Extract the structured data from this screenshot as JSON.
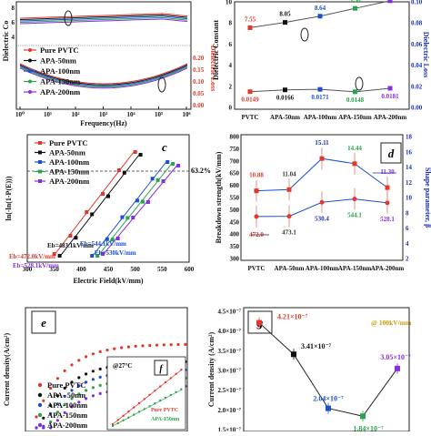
{
  "chart_data": [
    {
      "panel": "a",
      "type": "line",
      "ylabel_left": "Dielectric Co",
      "ylabel_right": "Dielectric Loss",
      "xlabel": "Frequency(Hz)",
      "x_ticks": [
        "10⁰",
        "10¹",
        "10²",
        "10³",
        "10⁴",
        "10⁵",
        "10⁶"
      ],
      "y_right_ticks": [
        "0.00",
        "0.05",
        "0.10",
        "0.15",
        "0.20"
      ],
      "y_left_ticks": [
        "8",
        "6",
        "4"
      ],
      "legend": [
        "Pure PVTC",
        "APA-50nm",
        "APA-100nm",
        "APA-150nm",
        "APA-200nm"
      ]
    },
    {
      "panel": "b",
      "type": "line",
      "ylabel_left": "Dielectric Constant",
      "ylabel_right": "Dielectric Loss",
      "categories": [
        "PVTC",
        "APA-50nm",
        "APA-100nm",
        "APA-150nm",
        "APA-200nm"
      ],
      "ylim": [
        0,
        10
      ],
      "y_ticks": [
        "0",
        "2",
        "4",
        "6",
        "8",
        "10"
      ],
      "y_right_ticks": [
        "0.00",
        "0.02",
        "0.04",
        "0.06",
        "0.08",
        "0.10"
      ],
      "series": [
        {
          "values": [
            7.55,
            8.05,
            8.64,
            9.38,
            10.1
          ],
          "labels": [
            "7.55",
            "8.05",
            "8.64",
            "9.38",
            ""
          ],
          "colors": [
            "#e0392b",
            "#111111",
            "#1a4fd0",
            "#2aa34a",
            "#8a2be2"
          ]
        },
        {
          "values": [
            0.0149,
            0.0166,
            0.0171,
            0.0148,
            0.0181
          ],
          "labels": [
            "0.0149",
            "0.0166",
            "0.0171",
            "0.0148",
            "0.0181"
          ],
          "colors": [
            "#e0392b",
            "#111111",
            "#1a4fd0",
            "#2aa34a",
            "#8a2be2"
          ]
        }
      ]
    },
    {
      "panel": "c",
      "type": "scatter",
      "ylabel": "ln(-ln(1-P(E)))",
      "xlabel": "Electric Field(kV/mm)",
      "x_ticks": [
        "300",
        "350",
        "400",
        "450",
        "500",
        "550",
        "600"
      ],
      "xlim": [
        300,
        600
      ],
      "annotation": "63.2%",
      "legend": [
        "Pure PVTC",
        "APA-50nm",
        "APA-100nm",
        "APA-150nm",
        "APA-200nm"
      ],
      "eb_labels": [
        "Eb=483.1kV/mm",
        "Eb=472.0kV/mm",
        "Eb=528.1kV/mm",
        "Eb=530kV/mm",
        "Eb=544.1kV/mm"
      ]
    },
    {
      "panel": "d",
      "type": "line",
      "ylabel_left": "Breakdown strength(kV/mm)",
      "ylabel_right": "Shape parameter, β",
      "categories": [
        "PVTC",
        "APA-50nm",
        "APA-100nm",
        "APA-150nm",
        "APA-200nm"
      ],
      "ylim": [
        300,
        800
      ],
      "y_ticks": [
        "300",
        "350",
        "400",
        "450",
        "500",
        "550",
        "600",
        "650",
        "700",
        "750",
        "800"
      ],
      "y_right_ticks": [
        "2",
        "4",
        "6",
        "8",
        "10",
        "12",
        "14",
        "16",
        "18"
      ],
      "series": [
        {
          "values": [
            10.88,
            11.04,
            15.11,
            14.44,
            11.3
          ],
          "labels": [
            "10.88",
            "11.04",
            "15.11",
            "14.44",
            "11.30"
          ]
        },
        {
          "values": [
            472.0,
            473.1,
            530.4,
            544.1,
            528.1
          ],
          "labels": [
            "472.0",
            "473.1",
            "530.4",
            "544.1",
            "528.1"
          ]
        }
      ]
    },
    {
      "panel": "e",
      "type": "scatter",
      "ylabel": "Current density(A/cm²)",
      "legend": [
        "Pure PVTC",
        "APA- 50nm",
        "APA-100nm",
        "APA-150nm",
        "APA-200nm"
      ],
      "inset_label": "f",
      "inset_annotation": "@27°C",
      "inset_legend": [
        "Pure PVTC",
        "APA-150nm"
      ]
    },
    {
      "panel": "g",
      "type": "line",
      "ylabel": "Current density (A/cm²)",
      "annotation": "@ 100kV/mm",
      "ylim": [
        1.5,
        4.5
      ],
      "y_ticks": [
        "1.5×10⁻⁷",
        "2.0×10⁻⁷",
        "2.5×10⁻⁷",
        "3.0×10⁻⁷",
        "3.5×10⁻⁷",
        "4.0×10⁻⁷",
        "4.5×10⁻⁷"
      ],
      "values": [
        4.21,
        3.41,
        2.04,
        1.84,
        3.05
      ],
      "labels": [
        "4.21×10⁻⁷",
        "3.41×10⁻⁷",
        "2.04×10⁻⁷",
        "1.84×10⁻⁷",
        "3.05×10⁻⁷"
      ],
      "colors": [
        "#e0392b",
        "#111111",
        "#1a4fd0",
        "#2aa34a",
        "#8a2be2"
      ]
    }
  ],
  "panel_letters": {
    "c": "c",
    "d": "d",
    "e": "e",
    "f": "f",
    "g": "g"
  }
}
